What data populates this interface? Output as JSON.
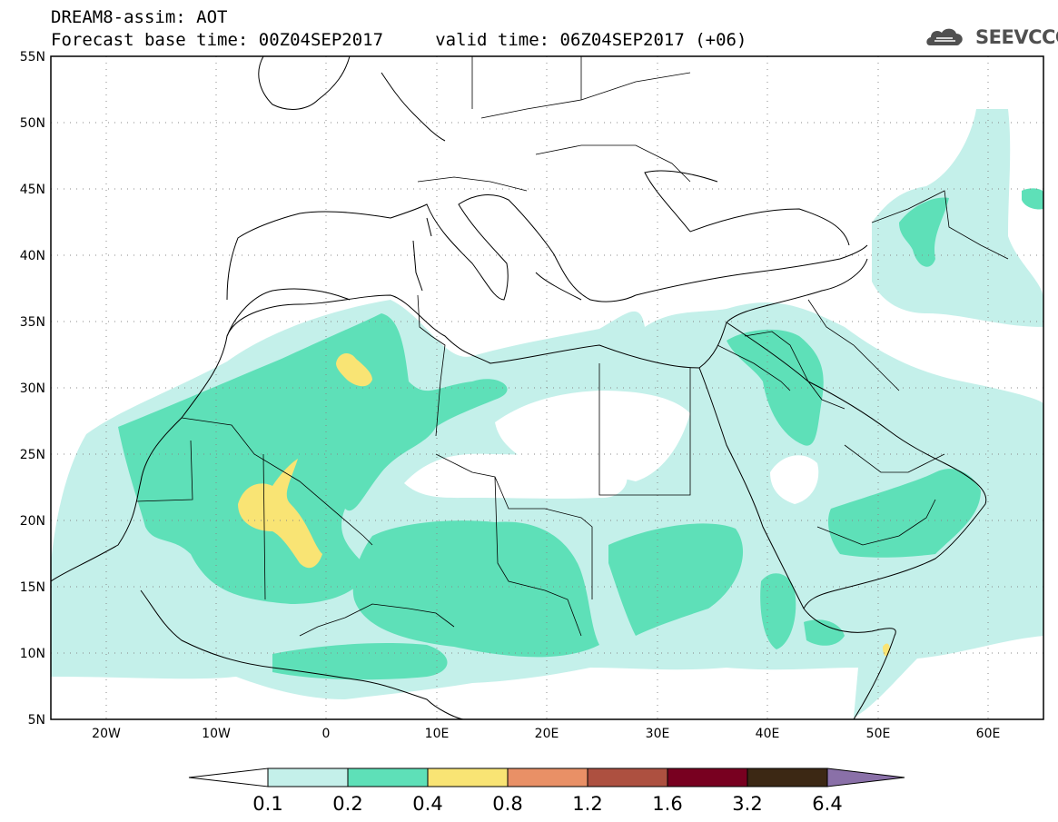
{
  "header": {
    "title_line1": "DREAM8-assim: AOT",
    "title_line2": "Forecast base time: 00Z04SEP2017     valid time: 06Z04SEP2017 (+06)"
  },
  "logo": {
    "text": "SEEVCCC",
    "icon": "cloud-icon"
  },
  "map": {
    "lon_range": [
      -25,
      65
    ],
    "lat_range": [
      5,
      55
    ],
    "lat_ticks": [
      "55N",
      "50N",
      "45N",
      "40N",
      "35N",
      "30N",
      "25N",
      "20N",
      "15N",
      "10N",
      "5N"
    ],
    "lon_ticks": [
      "20W",
      "10W",
      "0",
      "10E",
      "20E",
      "30E",
      "40E",
      "50E",
      "60E"
    ],
    "grid": "dotted"
  },
  "colorbar": {
    "labels": [
      "0.1",
      "0.2",
      "0.4",
      "0.8",
      "1.2",
      "1.6",
      "3.2",
      "6.4"
    ],
    "colors": [
      "#ffffff",
      "#c4f0ea",
      "#5ee0b8",
      "#f9e474",
      "#e99066",
      "#ad5040",
      "#780020",
      "#3c2814",
      "#8a70a8"
    ]
  }
}
